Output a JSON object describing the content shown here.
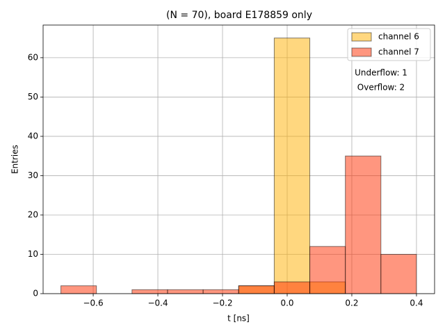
{
  "chart_data": {
    "type": "histogram",
    "title": "(N = 70), board E178859 only",
    "xlabel": "t [ns]",
    "ylabel": "Entries",
    "bins": [
      -0.7,
      -0.59,
      -0.48,
      -0.37,
      -0.26,
      -0.15,
      -0.04,
      0.07,
      0.18,
      0.29,
      0.4
    ],
    "series": [
      {
        "name": "channel 6",
        "color": "#ffb000",
        "values": [
          0,
          0,
          0,
          0,
          0,
          2,
          65,
          3,
          0,
          0
        ]
      },
      {
        "name": "channel 7",
        "color": "#ff2e00",
        "values": [
          2,
          0,
          1,
          1,
          1,
          2,
          3,
          12,
          35,
          10
        ]
      }
    ],
    "alpha": 0.5,
    "annotations": [
      "Underflow: 1",
      "Overflow: 2"
    ],
    "xlim": [
      -0.755,
      0.456
    ],
    "ylim": [
      0,
      68.3
    ],
    "xticks": [
      {
        "value": -0.6,
        "label": "−0.6"
      },
      {
        "value": -0.4,
        "label": "−0.4"
      },
      {
        "value": -0.2,
        "label": "−0.2"
      },
      {
        "value": 0,
        "label": "0.0"
      },
      0.2,
      0.4
    ],
    "yticks": [
      0,
      10,
      20,
      30,
      40,
      50,
      60
    ],
    "grid": true,
    "legend": "upper right"
  }
}
